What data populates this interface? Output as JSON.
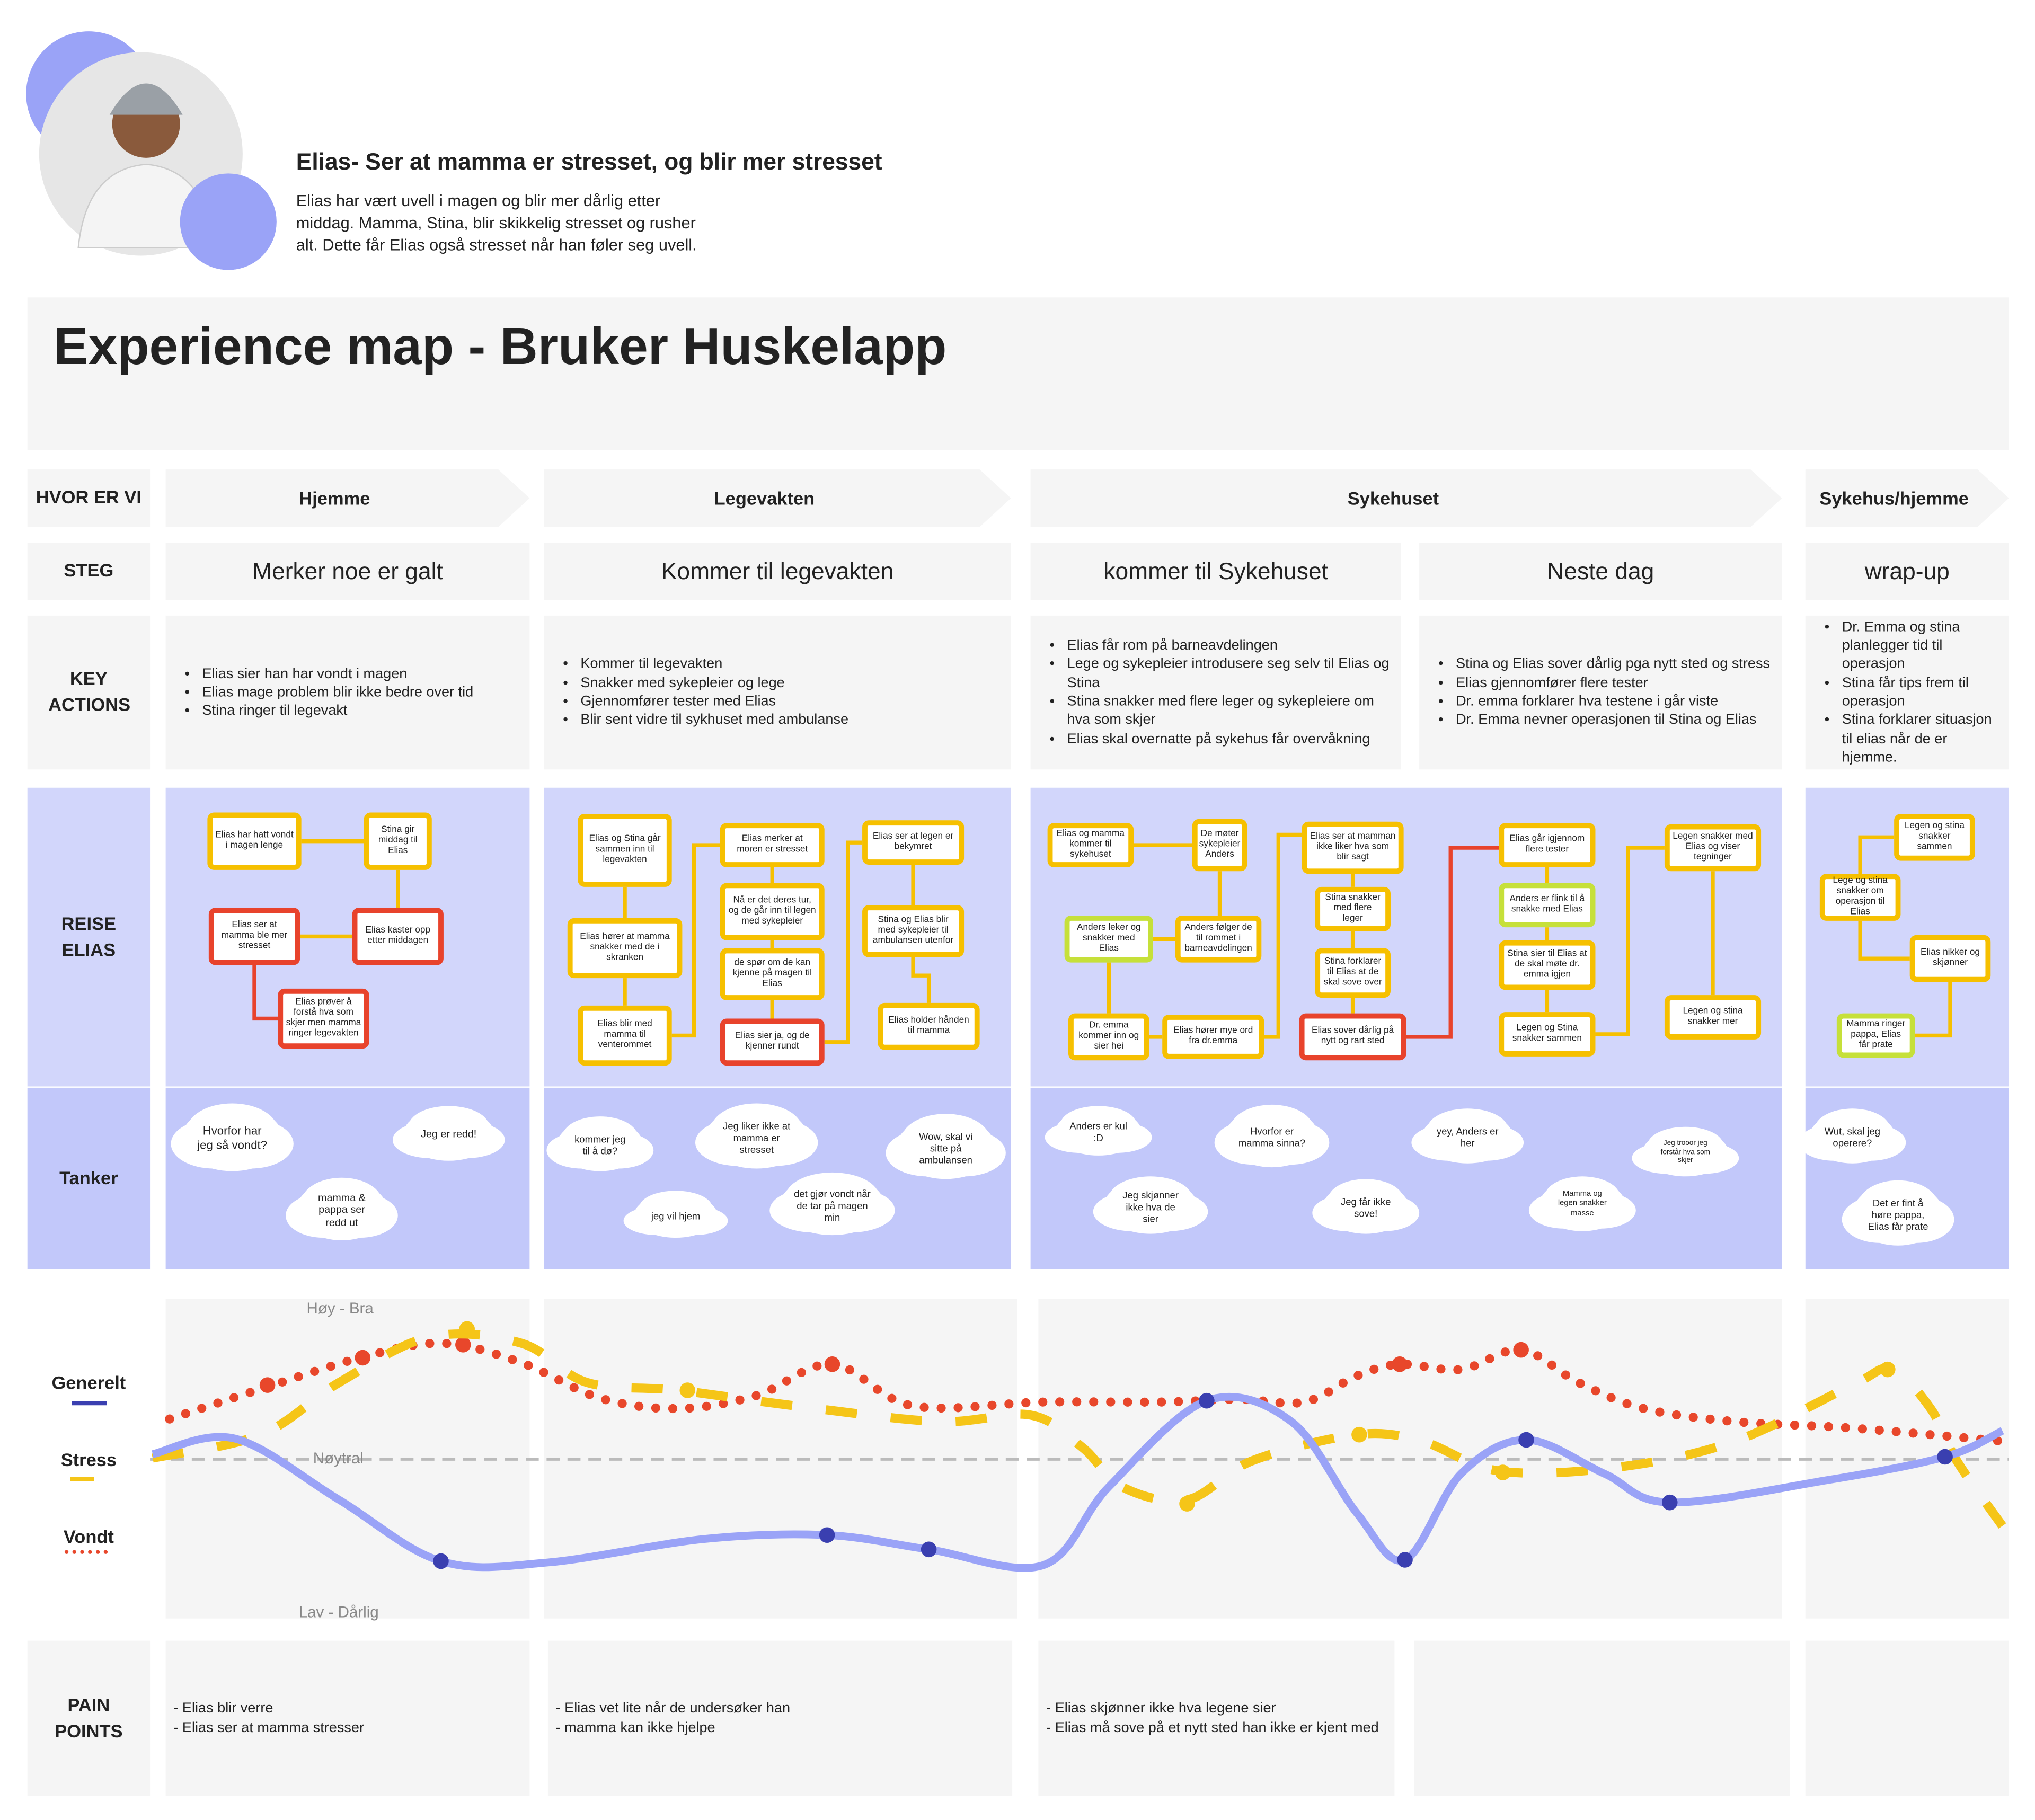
{
  "persona": {
    "title": "Elias- Ser at mamma er stresset, og blir mer stresset",
    "description": "Elias har vært uvell i magen og blir mer dårlig etter middag. Mamma, Stina, blir skikkelig stresset og rusher alt. Dette får Elias også stresset når han føler seg uvell."
  },
  "title": "Experience map - Bruker Huskelapp",
  "row_labels": {
    "where": "HVOR ER VI",
    "steps": "STEG",
    "actions": "KEY ACTIONS",
    "journey": "REISE ELIAS",
    "thoughts": "Tanker",
    "pain_points": "PAIN POINTS"
  },
  "phases": [
    "Hjemme",
    "Legevakten",
    "Sykehuset",
    "Sykehus/hjemme"
  ],
  "steps": [
    {
      "name": "Merker noe er galt",
      "actions": [
        "Elias sier han har vondt i magen",
        "Elias mage problem blir ikke bedre over tid",
        "Stina ringer til legevakt"
      ],
      "pain_points": [
        "- Elias blir verre",
        "- Elias ser at mamma stresser"
      ]
    },
    {
      "name": "Kommer til legevakten",
      "actions": [
        "Kommer til legevakten",
        "Snakker med sykepleier og lege",
        "Gjennomfører tester med Elias",
        "Blir sent vidre til sykhuset med ambulanse"
      ],
      "pain_points": [
        "- Elias vet lite når de undersøker han",
        "- mamma kan ikke hjelpe"
      ]
    },
    {
      "name": "kommer til Sykehuset",
      "actions": [
        "Elias får rom på barneavdelingen",
        "Lege og sykepleier introdusere seg selv til Elias og Stina",
        "Stina snakker med flere leger og sykepleiere om hva som skjer",
        "Elias skal overnatte på sykehus får overvåkning"
      ],
      "pain_points": [
        "- Elias skjønner ikke hva legene sier",
        "- Elias må sove på et nytt sted han ikke er kjent med"
      ]
    },
    {
      "name": "Neste dag",
      "actions": [
        "Stina og Elias sover dårlig pga nytt sted og stress",
        "Elias gjennomfører flere tester",
        "Dr. emma forklarer hva testene i går viste",
        "Dr. Emma nevner operasjonen til Stina og Elias"
      ],
      "pain_points": []
    },
    {
      "name": "wrap-up",
      "actions": [
        "Dr. Emma og stina planlegger tid til operasjon",
        "Stina får tips frem til operasjon",
        "Stina forklarer situasjon til elias når de er hjemme."
      ],
      "pain_points": []
    }
  ],
  "journey": [
    {
      "label": "Elias har hatt vondt i magen lenge",
      "color": "#f6c000"
    },
    {
      "label": "Stina gir middag til Elias",
      "color": "#f6c000"
    },
    {
      "label": "Elias ser at mamma ble mer stresset",
      "color": "#e8432c"
    },
    {
      "label": "Elias kaster opp etter middagen",
      "color": "#e8432c"
    },
    {
      "label": "Elias prøver å forstå hva som skjer men mamma ringer legevakten",
      "color": "#e8432c"
    },
    {
      "label": "Elias og Stina går sammen inn til legevakten",
      "color": "#f6c000"
    },
    {
      "label": "Elias hører at mamma snakker med de i skranken",
      "color": "#f6c000"
    },
    {
      "label": "Elias blir med mamma til venterommet",
      "color": "#f6c000"
    },
    {
      "label": "Elias merker at moren er stresset",
      "color": "#f6c000"
    },
    {
      "label": "Nå er det deres tur, og de går inn til legen med sykepleier",
      "color": "#f6c000"
    },
    {
      "label": "de spør om de kan kjenne på magen til Elias",
      "color": "#f6c000"
    },
    {
      "label": "Elias sier ja, og de kjenner rundt",
      "color": "#e8432c"
    },
    {
      "label": "Elias ser at legen er bekymret",
      "color": "#f6c000"
    },
    {
      "label": "Stina og Elias blir med sykepleier til ambulansen utenfor",
      "color": "#f6c000"
    },
    {
      "label": "Elias holder hånden til mamma",
      "color": "#f6c000"
    },
    {
      "label": "Elias og mamma kommer til sykehuset",
      "color": "#f6c000"
    },
    {
      "label": "De møter sykepleier Anders",
      "color": "#f6c000"
    },
    {
      "label": "Anders leker og snakker med Elias",
      "color": "#c6e03a"
    },
    {
      "label": "Anders følger de til rommet i barneavdelingen",
      "color": "#f6c000"
    },
    {
      "label": "Dr. emma kommer inn og sier hei",
      "color": "#f6c000"
    },
    {
      "label": "Elias hører mye ord fra dr.emma",
      "color": "#f6c000"
    },
    {
      "label": "Elias ser at mamman ikke liker hva som blir sagt",
      "color": "#f6c000"
    },
    {
      "label": "Stina snakker med flere leger",
      "color": "#f6c000"
    },
    {
      "label": "Stina forklarer til Elias at de skal sove over",
      "color": "#f6c000"
    },
    {
      "label": "Elias sover dårlig på nytt og rart sted",
      "color": "#e8432c"
    },
    {
      "label": "Elias går igjennom flere tester",
      "color": "#f6c000"
    },
    {
      "label": "Anders er flink til å snakke med Elias",
      "color": "#c6e03a"
    },
    {
      "label": "Stina sier til Elias at de skal møte dr. emma igjen",
      "color": "#f6c000"
    },
    {
      "label": "Legen og Stina snakker sammen",
      "color": "#f6c000"
    },
    {
      "label": "Legen snakker med Elias og viser tegninger",
      "color": "#f6c000"
    },
    {
      "label": "Legen og stina snakker mer",
      "color": "#f6c000"
    },
    {
      "label": "Legen og stina snakker sammen",
      "color": "#f6c000"
    },
    {
      "label": "Lege og stina snakker om operasjon til Elias",
      "color": "#f6c000"
    },
    {
      "label": "Elias nikker og skjønner",
      "color": "#f6c000"
    },
    {
      "label": "Mamma ringer pappa, Elias får prate",
      "color": "#c6e03a"
    }
  ],
  "thoughts": [
    "Hvorfor har jeg så vondt?",
    "Jeg er redd!",
    "mamma & pappa ser redd ut",
    "kommer jeg til å dø?",
    "Jeg liker ikke at mamma er stresset",
    "Wow, skal vi sitte på ambulansen",
    "jeg vil hjem",
    "det gjør vondt når de tar på magen min",
    "Anders er kul :D",
    "Hvorfor er mamma sinna?",
    "yey, Anders er her",
    "Jeg trooor jeg forstår hva som skjer",
    "Jeg skjønner ikke hva de sier",
    "Jeg får ikke sove!",
    "Mamma og legen snakker masse",
    "Wut, skal jeg operere?",
    "Det er fint å høre pappa, Elias får prate"
  ],
  "emotions": {
    "legend": [
      "Generelt",
      "Stress",
      "Vondt"
    ],
    "high": "Høy - Bra",
    "neutral": "Nøytral",
    "low": "Lav - Dårlig"
  }
}
